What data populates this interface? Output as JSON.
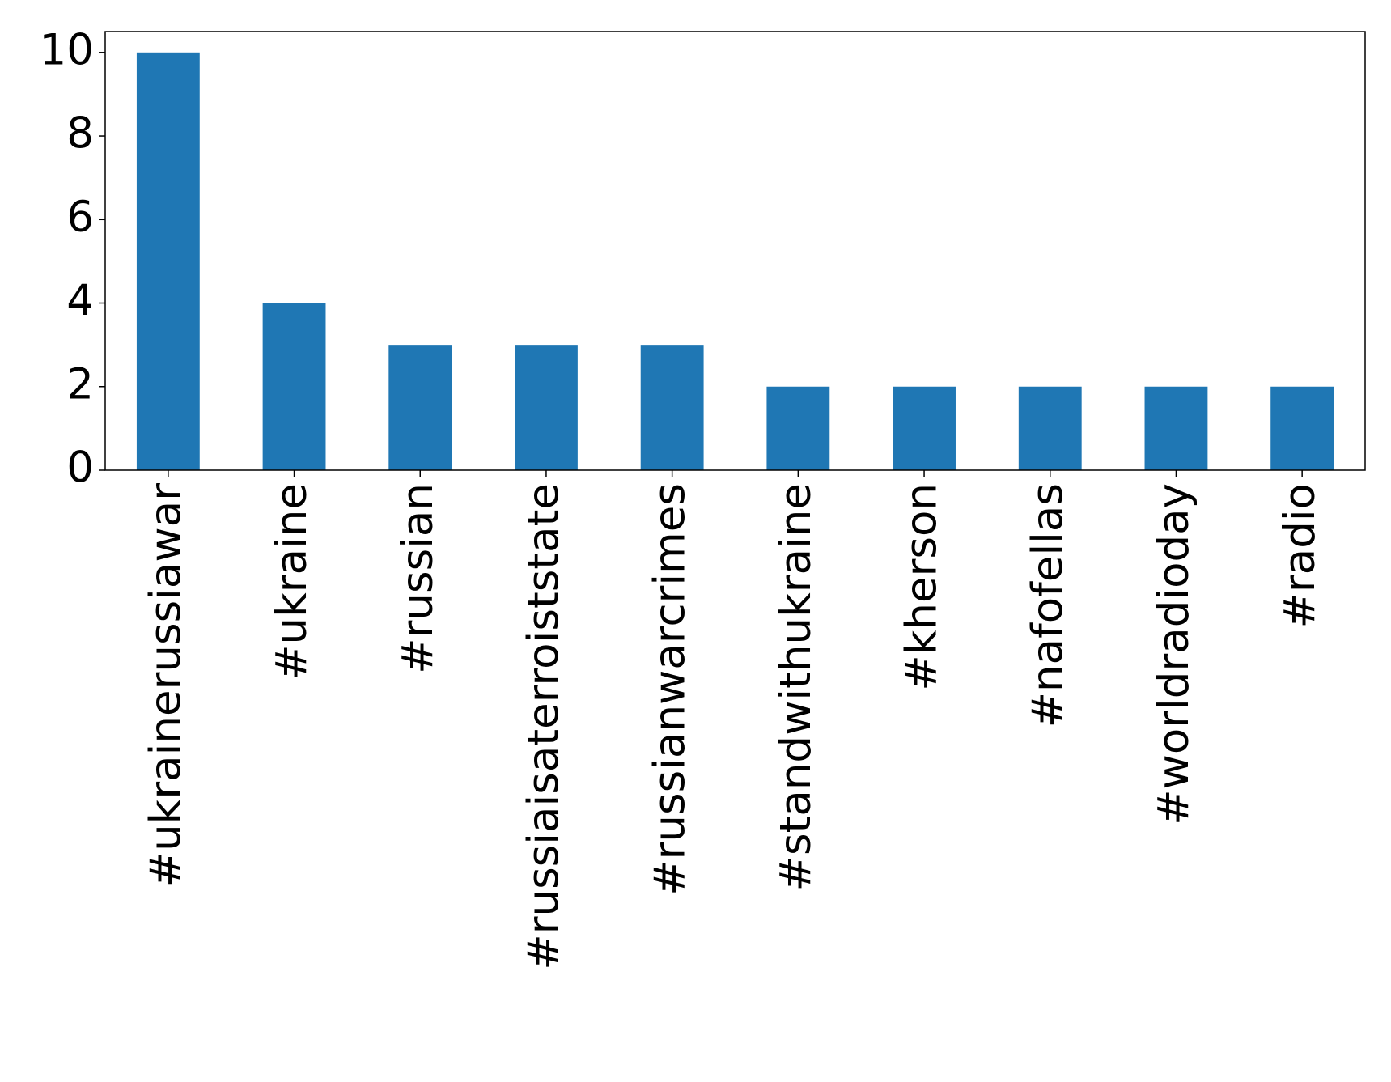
{
  "chart_data": {
    "type": "bar",
    "categories": [
      "#ukrainerussiawar",
      "#ukraine",
      "#russian",
      "#russiaisaterroiststate",
      "#russianwarcrimes",
      "#standwithukraine",
      "#kherson",
      "#nafofellas",
      "#worldradioday",
      "#radio"
    ],
    "values": [
      10,
      4,
      3,
      3,
      3,
      2,
      2,
      2,
      2,
      2
    ],
    "color": "#1f77b4",
    "ylim": [
      0,
      10.5
    ],
    "yticks": [
      0,
      2,
      4,
      6,
      8,
      10
    ],
    "grid": false
  }
}
